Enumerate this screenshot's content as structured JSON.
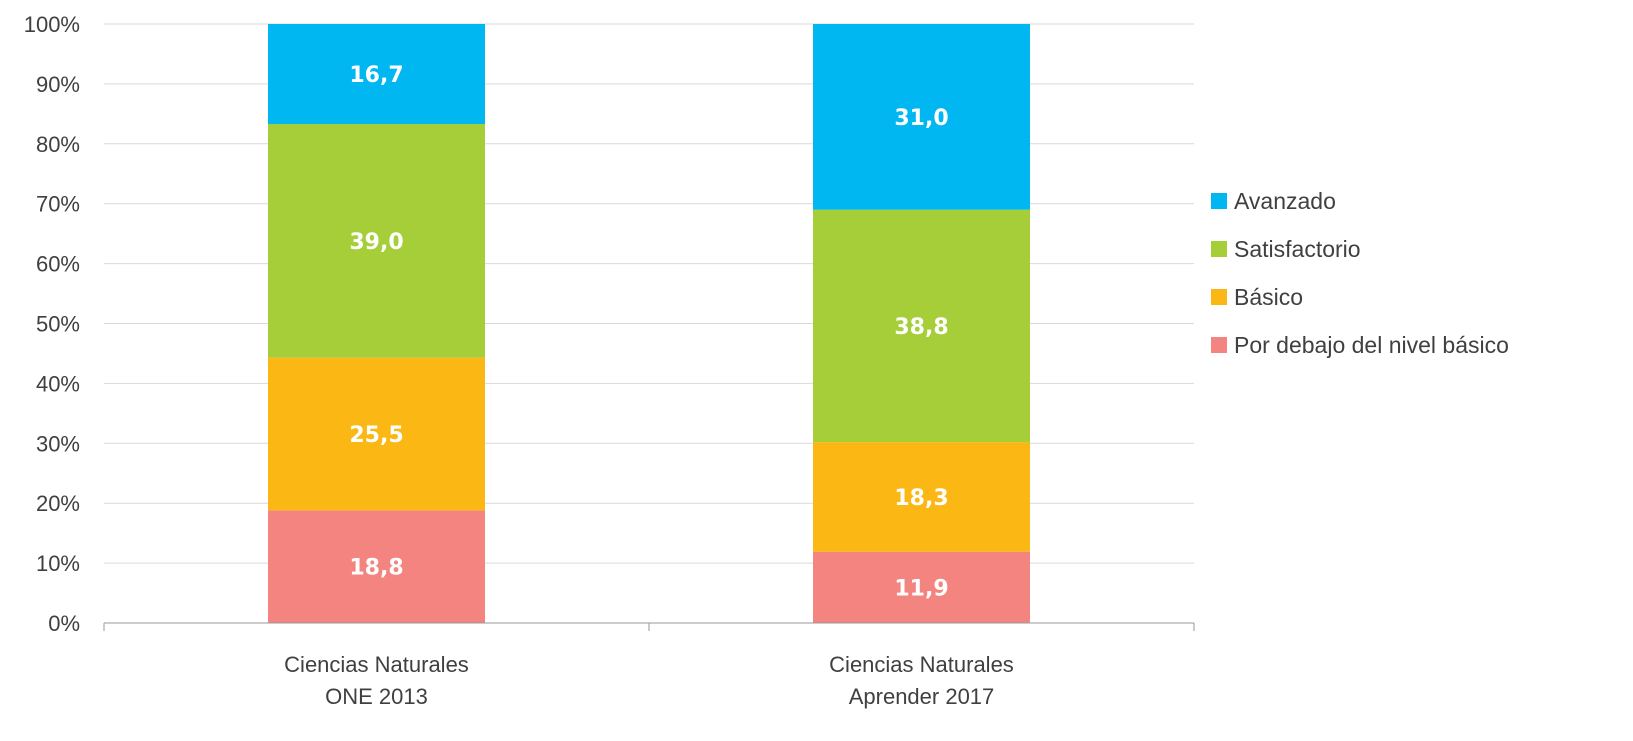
{
  "chart_data": {
    "type": "bar",
    "stacked": true,
    "percent_axis": true,
    "categories": [
      [
        "Ciencias Naturales",
        "ONE 2013"
      ],
      [
        "Ciencias Naturales",
        "Aprender 2017"
      ]
    ],
    "series": [
      {
        "name": "Por debajo del nivel básico",
        "color": "#f4847f",
        "values": [
          18.8,
          11.9
        ],
        "labels": [
          "18,8",
          "11,9"
        ]
      },
      {
        "name": "Básico",
        "color": "#fbb714",
        "values": [
          25.5,
          18.3
        ],
        "labels": [
          "25,5",
          "18,3"
        ]
      },
      {
        "name": "Satisfactorio",
        "color": "#a6ce39",
        "values": [
          39.0,
          38.8
        ],
        "labels": [
          "39,0",
          "38,8"
        ]
      },
      {
        "name": "Avanzado",
        "color": "#00b7f1",
        "values": [
          16.7,
          31.0
        ],
        "labels": [
          "16,7",
          "31,0"
        ]
      }
    ],
    "yticks": [
      "0%",
      "10%",
      "20%",
      "30%",
      "40%",
      "50%",
      "60%",
      "70%",
      "80%",
      "90%",
      "100%"
    ],
    "ylim": [
      0,
      100
    ],
    "grid": true,
    "legend_position": "right",
    "legend_order": [
      "Avanzado",
      "Satisfactorio",
      "Básico",
      "Por debajo del nivel básico"
    ]
  }
}
